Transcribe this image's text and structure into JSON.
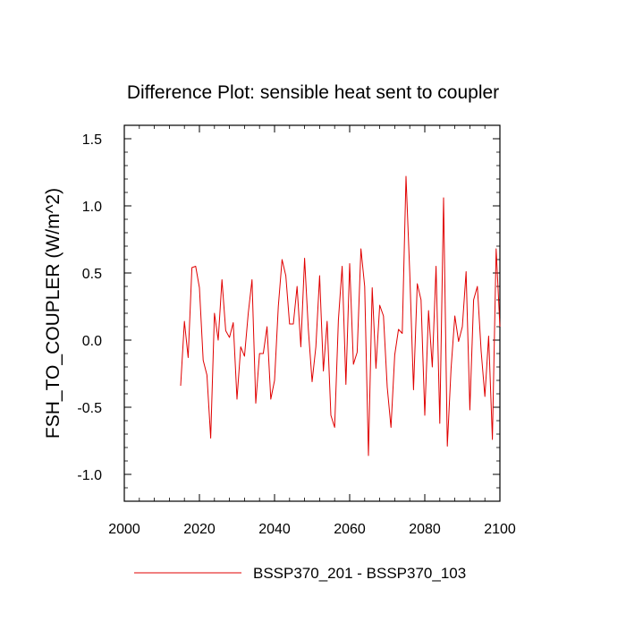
{
  "chart_data": {
    "type": "line",
    "title": "Difference Plot: sensible heat sent to coupler",
    "xlabel": "",
    "ylabel": "FSH_TO_COUPLER  (W/m^2)",
    "xlim": [
      2000,
      2100
    ],
    "ylim": [
      -1.2,
      1.6
    ],
    "x_ticks": [
      2000,
      2020,
      2040,
      2060,
      2080,
      2100
    ],
    "y_ticks": [
      -1.0,
      -0.5,
      0.0,
      0.5,
      1.0,
      1.5
    ],
    "x_tick_labels": [
      "2000",
      "2020",
      "2040",
      "2060",
      "2080",
      "2100"
    ],
    "y_tick_labels": [
      "-1.0",
      "-0.5",
      "0.0",
      "0.5",
      "1.0",
      "1.5"
    ],
    "grid": false,
    "legend_position": "bottom",
    "series": [
      {
        "name": "BSSP370_201 - BSSP370_103",
        "color": "#e00000",
        "x": [
          2015,
          2016,
          2017,
          2018,
          2019,
          2020,
          2021,
          2022,
          2023,
          2024,
          2025,
          2026,
          2027,
          2028,
          2029,
          2030,
          2031,
          2032,
          2033,
          2034,
          2035,
          2036,
          2037,
          2038,
          2039,
          2040,
          2041,
          2042,
          2043,
          2044,
          2045,
          2046,
          2047,
          2048,
          2049,
          2050,
          2051,
          2052,
          2053,
          2054,
          2055,
          2056,
          2057,
          2058,
          2059,
          2060,
          2061,
          2062,
          2063,
          2064,
          2065,
          2066,
          2067,
          2068,
          2069,
          2070,
          2071,
          2072,
          2073,
          2074,
          2075,
          2076,
          2077,
          2078,
          2079,
          2080,
          2081,
          2082,
          2083,
          2084,
          2085,
          2086,
          2087,
          2088,
          2089,
          2090,
          2091,
          2092,
          2093,
          2094,
          2095,
          2096,
          2097,
          2098,
          2099,
          2100
        ],
        "values": [
          -0.34,
          0.14,
          -0.13,
          0.54,
          0.55,
          0.39,
          -0.15,
          -0.26,
          -0.73,
          0.2,
          0.0,
          0.45,
          0.07,
          0.02,
          0.13,
          -0.44,
          -0.05,
          -0.12,
          0.2,
          0.45,
          -0.47,
          -0.1,
          -0.1,
          0.1,
          -0.44,
          -0.3,
          0.25,
          0.6,
          0.48,
          0.12,
          0.12,
          0.4,
          -0.05,
          0.61,
          0.08,
          -0.31,
          -0.05,
          0.48,
          -0.23,
          0.14,
          -0.56,
          -0.65,
          0.15,
          0.55,
          -0.33,
          0.57,
          -0.18,
          -0.09,
          0.68,
          0.4,
          -0.86,
          0.39,
          -0.21,
          0.26,
          0.18,
          -0.35,
          -0.65,
          -0.11,
          0.08,
          0.05,
          1.22,
          0.5,
          -0.37,
          0.42,
          0.3,
          -0.56,
          0.22,
          -0.2,
          0.55,
          -0.62,
          1.06,
          -0.79,
          -0.21,
          0.18,
          -0.01,
          0.1,
          0.51,
          -0.52,
          0.3,
          0.4,
          -0.08,
          -0.42,
          0.03,
          -0.74,
          0.68,
          0.1
        ]
      }
    ]
  }
}
